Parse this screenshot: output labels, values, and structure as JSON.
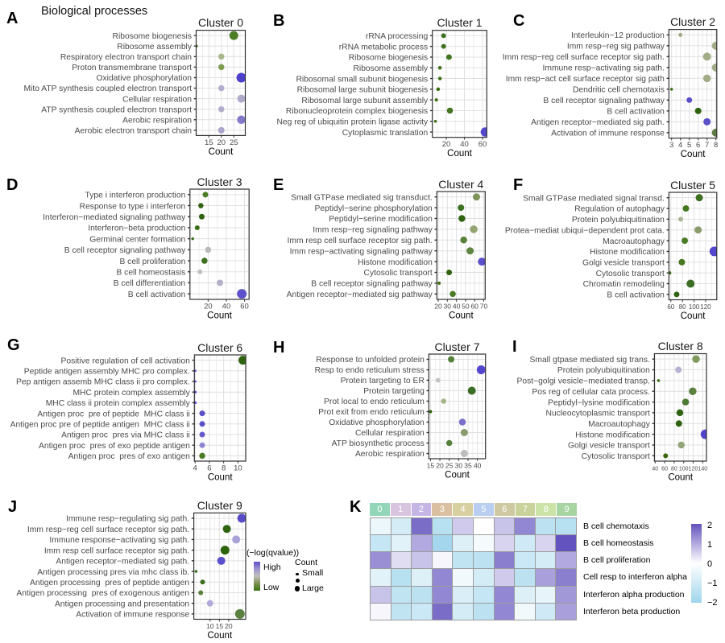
{
  "figure": {
    "title": "Biological processes"
  },
  "chart_data": [
    {
      "panel": "A",
      "type": "dot",
      "title": "Cluster 0",
      "xlabel": "Count",
      "xticks": [
        15,
        20,
        25
      ],
      "xlim": [
        9.9,
        29.6
      ],
      "legend": {
        "color": "(−log(qvalue))",
        "size": "Count"
      },
      "rows": [
        {
          "label": "Ribosome biogenesis",
          "count": 25,
          "size": 11,
          "color": "#4d7c26"
        },
        {
          "label": "Ribosome assembly",
          "count": 10,
          "size": 3.5,
          "color": "#3a6e14"
        },
        {
          "label": "Respiratory electron transport chain",
          "count": 20,
          "size": 7.5,
          "color": "#a7b78c"
        },
        {
          "label": "Proton transmembrane transport",
          "count": 20,
          "size": 7.5,
          "color": "#7d9c52"
        },
        {
          "label": "Oxidative phosphorylation",
          "count": 28,
          "size": 12,
          "color": "#4c3fc9"
        },
        {
          "label": "Mito ATP synthesis coupled electron transport",
          "count": 20,
          "size": 7.5,
          "color": "#b0aecb"
        },
        {
          "label": "Cellular respiration",
          "count": 28,
          "size": 10,
          "color": "#b0abc9"
        },
        {
          "label": "ATP synthesis coupled electron transport",
          "count": 20,
          "size": 7.5,
          "color": "#b0aecb"
        },
        {
          "label": "Aerobic respiration",
          "count": 28,
          "size": 10.5,
          "color": "#8379cb"
        },
        {
          "label": "Aerobic electron transport chain",
          "count": 20,
          "size": 8,
          "color": "#aaa6cd"
        }
      ]
    },
    {
      "panel": "B",
      "type": "dot",
      "title": "Cluster 1",
      "xlabel": "Count",
      "xticks": [
        20,
        40,
        60
      ],
      "xlim": [
        4.6,
        64.7
      ],
      "rows": [
        {
          "label": "rRNA processing",
          "count": 17,
          "size": 6,
          "color": "#3f7021"
        },
        {
          "label": "rRNA metabolic process",
          "count": 17,
          "size": 6,
          "color": "#3f7021"
        },
        {
          "label": "Ribosome biogenesis",
          "count": 23,
          "size": 7,
          "color": "#447522"
        },
        {
          "label": "Ribosome assembly",
          "count": 13,
          "size": 4.5,
          "color": "#3a6e14"
        },
        {
          "label": "Ribosomal small subunit biogenesis",
          "count": 13,
          "size": 4.5,
          "color": "#3a6e14"
        },
        {
          "label": "Ribosomal large subunit biogenesis",
          "count": 11,
          "size": 4.5,
          "color": "#3a6e14"
        },
        {
          "label": "Ribosomal large subunit assembly",
          "count": 9,
          "size": 4,
          "color": "#3a6e14"
        },
        {
          "label": "Ribonucleoprotein complex biogenesis",
          "count": 24,
          "size": 7.5,
          "color": "#447522"
        },
        {
          "label": "Neg reg of ubiquitin protein ligase activity",
          "count": 8,
          "size": 3.5,
          "color": "#3a6e14"
        },
        {
          "label": "Cytoplasmic translation",
          "count": 63,
          "size": 11.5,
          "color": "#5347cd"
        }
      ]
    },
    {
      "panel": "C",
      "type": "dot",
      "title": "Cluster 2",
      "xlabel": "Count",
      "xticks": [
        3,
        4,
        5,
        6,
        7,
        8
      ],
      "xlim": [
        2.7,
        8.1
      ],
      "rows": [
        {
          "label": "Interleukin−12 production",
          "count": 4,
          "size": 5,
          "color": "#9fab85"
        },
        {
          "label": "Imm resp−reg sig pathway",
          "count": 8,
          "size": 10,
          "color": "#a2ad88"
        },
        {
          "label": "Imm resp−reg cell surface receptor sig path.",
          "count": 7,
          "size": 10,
          "color": "#a2ad88"
        },
        {
          "label": "Immune resp−activating sig path.",
          "count": 8,
          "size": 10,
          "color": "#a2ad88"
        },
        {
          "label": "Imm resp−act cell surface receptor sig path",
          "count": 7,
          "size": 9.5,
          "color": "#a2ad88"
        },
        {
          "label": "Dendritic cell chemotaxis",
          "count": 3,
          "size": 3.5,
          "color": "#3a6e14"
        },
        {
          "label": "B cell receptor signaling pathway",
          "count": 5,
          "size": 7,
          "color": "#5a50c8"
        },
        {
          "label": "B cell activation",
          "count": 6,
          "size": 8,
          "color": "#2f6310"
        },
        {
          "label": "Antigen receptor−mediated sig path.",
          "count": 7,
          "size": 9,
          "color": "#5a50c8"
        },
        {
          "label": "Activation of immune response",
          "count": 8,
          "size": 10,
          "color": "#5f7d43"
        }
      ]
    },
    {
      "panel": "D",
      "type": "dot",
      "title": "Cluster 3",
      "xlabel": "Count",
      "xticks": [
        20,
        40,
        60
      ],
      "xlim": [
        0,
        65
      ],
      "rows": [
        {
          "label": "Type i interferon production",
          "count": 17,
          "size": 7,
          "color": "#4d7c26"
        },
        {
          "label": "Response to type i interferon",
          "count": 12,
          "size": 6.5,
          "color": "#2f6310"
        },
        {
          "label": "Interferon−mediated signaling pathway",
          "count": 13,
          "size": 7,
          "color": "#2f6310"
        },
        {
          "label": "Interferon−beta production",
          "count": 8,
          "size": 6,
          "color": "#3a6e14"
        },
        {
          "label": "Germinal center formation",
          "count": 3,
          "size": 3.5,
          "color": "#3a6e14"
        },
        {
          "label": "B cell receptor signaling pathway",
          "count": 20,
          "size": 7.5,
          "color": "#b9b9b9"
        },
        {
          "label": "B cell proliferation",
          "count": 16,
          "size": 7.5,
          "color": "#3f7021"
        },
        {
          "label": "B cell homeostasis",
          "count": 11,
          "size": 6,
          "color": "#c0c0c0"
        },
        {
          "label": "B cell differentiation",
          "count": 33,
          "size": 8,
          "color": "#b3b0c8"
        },
        {
          "label": "B cell activation",
          "count": 57,
          "size": 12,
          "color": "#5d52cc"
        }
      ]
    },
    {
      "panel": "E",
      "type": "dot",
      "title": "Cluster 4",
      "xlabel": "Count",
      "xticks": [
        20,
        30,
        40,
        50,
        60,
        70
      ],
      "xlim": [
        18.5,
        71.6
      ],
      "rows": [
        {
          "label": "Small GTPase mediated sig transduct.",
          "count": 62,
          "size": 9,
          "color": "#7e9459"
        },
        {
          "label": "Peptidyl−serine phosphorylation",
          "count": 45,
          "size": 8,
          "color": "#3d7020"
        },
        {
          "label": "Peptidyl−serine modification",
          "count": 46,
          "size": 8.5,
          "color": "#2f6310"
        },
        {
          "label": "Imm resp−reg signaling pathway",
          "count": 59,
          "size": 9.5,
          "color": "#93a470"
        },
        {
          "label": "Imm resp cell surface receptor sig path.",
          "count": 48,
          "size": 8.5,
          "color": "#57813a"
        },
        {
          "label": "Imm resp−activating signaling pathway",
          "count": 55,
          "size": 9,
          "color": "#5d8540"
        },
        {
          "label": "Histone modification",
          "count": 68,
          "size": 10,
          "color": "#5a50cb"
        },
        {
          "label": "Cytosolic transport",
          "count": 32,
          "size": 7,
          "color": "#2f6310"
        },
        {
          "label": "B cell receptor signaling pathway",
          "count": 21,
          "size": 4,
          "color": "#3a6e14"
        },
        {
          "label": "Antigen receptor−mediated sig pathway",
          "count": 36,
          "size": 7.5,
          "color": "#4a7c26"
        }
      ]
    },
    {
      "panel": "F",
      "type": "dot",
      "title": "Cluster 5",
      "xlabel": "Count",
      "xticks": [
        60,
        80,
        100,
        120
      ],
      "xlim": [
        56.7,
        139.2
      ],
      "rows": [
        {
          "label": "Small GTPase mediated signal transd.",
          "count": 109,
          "size": 9,
          "color": "#3d7020"
        },
        {
          "label": "Regulation of autophagy",
          "count": 86,
          "size": 8,
          "color": "#45771f"
        },
        {
          "label": "Protein polyubiquitination",
          "count": 77,
          "size": 6,
          "color": "#a9b694"
        },
        {
          "label": "Protea−mediat ubiqui−dependent prot cata.",
          "count": 107,
          "size": 9,
          "color": "#8a9c6b"
        },
        {
          "label": "Macroautophagy",
          "count": 84,
          "size": 8,
          "color": "#4a7c26"
        },
        {
          "label": "Histone modification",
          "count": 135,
          "size": 12,
          "color": "#5347cd"
        },
        {
          "label": "Golgi vesicle transport",
          "count": 79,
          "size": 8,
          "color": "#45771f"
        },
        {
          "label": "Cytosolic transport",
          "count": 58,
          "size": 4,
          "color": "#3a6e14"
        },
        {
          "label": "Chromatin remodeling",
          "count": 94,
          "size": 10,
          "color": "#3b6d24"
        },
        {
          "label": "B cell activation",
          "count": 70,
          "size": 7,
          "color": "#2f6310"
        }
      ]
    },
    {
      "panel": "G",
      "type": "dot",
      "title": "Cluster 6",
      "xlabel": "Count",
      "xticks": [
        4,
        6,
        8,
        10
      ],
      "xlim": [
        3.9,
        11.1
      ],
      "rows": [
        {
          "label": "Positive regulation of cell activation",
          "count": 10.7,
          "size": 11,
          "color": "#2f6310"
        },
        {
          "label": "Peptide antigen assembly MHC pro complex.",
          "count": 4,
          "size": 3,
          "color": "#4b42ce"
        },
        {
          "label": "Pep antigen assemb MHC class ii pro complex.",
          "count": 4,
          "size": 3,
          "color": "#4b42ce"
        },
        {
          "label": "MHC protein complex assembly",
          "count": 4,
          "size": 3.5,
          "color": "#4b42ce"
        },
        {
          "label": "MHC class ii protein complex assembly",
          "count": 4,
          "size": 3.5,
          "color": "#4b42ce"
        },
        {
          "label": "Antigen proc  pre of peptide  MHC class ii",
          "count": 5,
          "size": 7,
          "color": "#5a50c8"
        },
        {
          "label": "Antigen proc pre of peptide antigen  MHC class ii",
          "count": 5,
          "size": 7,
          "color": "#5a50c8"
        },
        {
          "label": "Antigen proc  pres via MHC class ii",
          "count": 5,
          "size": 7,
          "color": "#665cc9"
        },
        {
          "label": "Antigen proc  pres of exo peptide antigen",
          "count": 5,
          "size": 7,
          "color": "#8d85cf"
        },
        {
          "label": "Antigen proc  pres of exo antigen",
          "count": 5,
          "size": 7.5,
          "color": "#4a7c26"
        }
      ]
    },
    {
      "panel": "H",
      "type": "dot",
      "title": "Cluster 7",
      "xlabel": "Count",
      "xticks": [
        15,
        20,
        25,
        30,
        35,
        40
      ],
      "xlim": [
        14.1,
        44.3
      ],
      "rows": [
        {
          "label": "Response to unfolded protein",
          "count": 26,
          "size": 8,
          "color": "#55803a"
        },
        {
          "label": "Resp to endo reticulum stress",
          "count": 42,
          "size": 11,
          "color": "#5347cd"
        },
        {
          "label": "Protein targeting to ER",
          "count": 19,
          "size": 6,
          "color": "#c4c4c4"
        },
        {
          "label": "Protein targeting",
          "count": 37,
          "size": 10,
          "color": "#3b6d24"
        },
        {
          "label": "Prot local to endo reticulum",
          "count": 22,
          "size": 6.5,
          "color": "#a3b585"
        },
        {
          "label": "Prot exit from endo reticulum",
          "count": 15,
          "size": 4,
          "color": "#2f6310"
        },
        {
          "label": "Oxidative phosphorylation",
          "count": 32,
          "size": 8.5,
          "color": "#7a70cb"
        },
        {
          "label": "Cellular respiration",
          "count": 33,
          "size": 9,
          "color": "#8a9c6b"
        },
        {
          "label": "ATP biosynthetic process",
          "count": 25,
          "size": 7.5,
          "color": "#55803a"
        },
        {
          "label": "Aerobic respiration",
          "count": 33,
          "size": 9,
          "color": "#bdbdbd"
        }
      ]
    },
    {
      "panel": "I",
      "type": "dot",
      "title": "Cluster 8",
      "xlabel": "Count",
      "xticks": [
        40,
        60,
        80,
        100,
        120,
        140
      ],
      "xlim": [
        38.5,
        148
      ],
      "rows": [
        {
          "label": "Small gtpase mediated sig trans.",
          "count": 126,
          "size": 9.5,
          "color": "#7f9a5e"
        },
        {
          "label": "Protein polyubiquitination",
          "count": 89,
          "size": 8,
          "color": "#b5b1d2"
        },
        {
          "label": "Post−golgi vesicle−mediated transp.",
          "count": 47,
          "size": 3.5,
          "color": "#3a6e14"
        },
        {
          "label": "Pos reg of cellular cata process.",
          "count": 119,
          "size": 9.5,
          "color": "#5c8140"
        },
        {
          "label": "Peptidyl−lysine modification",
          "count": 104,
          "size": 8.5,
          "color": "#4f7a33"
        },
        {
          "label": "Nucleocytoplasmic transport",
          "count": 92,
          "size": 8.5,
          "color": "#2f6310"
        },
        {
          "label": "Macroautophagy",
          "count": 90,
          "size": 8,
          "color": "#2f6310"
        },
        {
          "label": "Histone modification",
          "count": 146,
          "size": 12,
          "color": "#5145cb"
        },
        {
          "label": "Golgi vesicle transport",
          "count": 95,
          "size": 8.5,
          "color": "#93a478"
        },
        {
          "label": "Cytosolic transport",
          "count": 62,
          "size": 6,
          "color": "#39680f"
        }
      ]
    },
    {
      "panel": "J",
      "type": "dot",
      "title": "Cluster 9",
      "xlabel": "Count",
      "xticks": [
        10,
        15,
        20
      ],
      "xlim": [
        1.3,
        29.1
      ],
      "rows": [
        {
          "label": "Immune resp−regulating sig path.",
          "count": 27,
          "size": 11,
          "color": "#584bc8"
        },
        {
          "label": "Imm resp−reg cell surface receptor sig path.",
          "count": 19,
          "size": 10,
          "color": "#2f6310"
        },
        {
          "label": "Immune response−activating sig path.",
          "count": 24,
          "size": 10,
          "color": "#a9a2d8"
        },
        {
          "label": "Imm resp cell surface receptor sig path.",
          "count": 18,
          "size": 11,
          "color": "#2e630e"
        },
        {
          "label": "Antigen receptor−mediated sig path.",
          "count": 16,
          "size": 10,
          "color": "#5b50cb"
        },
        {
          "label": "Antigen processing pres via mhc class ib.",
          "count": 2.5,
          "size": 3.5,
          "color": "#3a6e14"
        },
        {
          "label": "Antigen processing  pres of peptide antigen",
          "count": 6,
          "size": 6,
          "color": "#3a6e1c"
        },
        {
          "label": "Antigen processing  pres of exogenous antigen",
          "count": 5,
          "size": 6,
          "color": "#58813a"
        },
        {
          "label": "Antigen processing and presentation",
          "count": 10,
          "size": 8,
          "color": "#b0aad9"
        },
        {
          "label": "Activation of immune response",
          "count": 26,
          "size": 12,
          "color": "#5a8140"
        }
      ]
    },
    {
      "panel": "K",
      "type": "heatmap",
      "columns": [
        "0",
        "1",
        "2",
        "3",
        "4",
        "5",
        "6",
        "7",
        "8",
        "9"
      ],
      "column_colors": [
        "#93d5b9",
        "#d9c4e0",
        "#c4b5e4",
        "#dabfa0",
        "#d7cfa0",
        "#bacef1",
        "#cfc9a1",
        "#cad29c",
        "#cce3a8",
        "#a8d4a2"
      ],
      "rows": [
        "B cell chemotaxis",
        "B cell homeostasis",
        "B cell proliferation",
        "Cell resp to interferon alpha",
        "Interferon alpha production",
        "Interferon beta production"
      ],
      "values": [
        [
          -0.4,
          -0.9,
          1.7,
          -1.5,
          0.6,
          0.0,
          0.7,
          1.4,
          -1.4,
          -1.5
        ],
        [
          -1.2,
          -0.6,
          1.0,
          -1.9,
          -0.7,
          -0.2,
          0.5,
          -1.0,
          0.5,
          2.0
        ],
        [
          1.3,
          0.4,
          0.7,
          0.1,
          -1.3,
          -1.4,
          1.5,
          -1.1,
          -0.9,
          1.0
        ],
        [
          -0.6,
          -1.5,
          -0.7,
          1.4,
          -0.3,
          -0.9,
          0.6,
          -1.4,
          1.1,
          1.5
        ],
        [
          0.7,
          -1.3,
          -1.4,
          1.4,
          -0.8,
          -1.2,
          1.4,
          -0.7,
          -0.5,
          1.2
        ],
        [
          0.1,
          -1.3,
          -1.1,
          1.7,
          -0.9,
          -1.4,
          1.4,
          -0.3,
          -1.0,
          1.1
        ]
      ],
      "colorbar": {
        "ticks": [
          "2",
          "1",
          "0",
          "−1",
          "−2"
        ],
        "max": 2,
        "min": -2,
        "high_color": "#6353be",
        "mid_color": "#ffffff",
        "low_color": "#9fd5ec"
      }
    }
  ],
  "legend": {
    "color_title": "(−log(qvalue))",
    "high_label": "High",
    "low_label": "Low",
    "size_title": "Count",
    "size_small": "Small",
    "size_large": "Large",
    "gradient_high_color": "#5b4cc5",
    "gradient_low_color": "#3a7412"
  }
}
